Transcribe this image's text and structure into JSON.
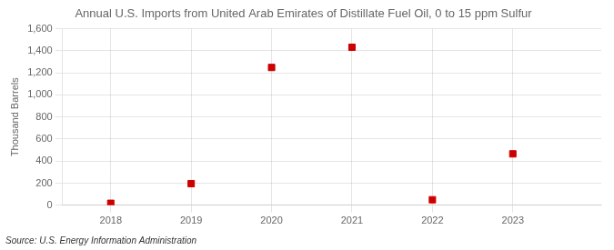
{
  "chart_data": {
    "type": "scatter",
    "title": "Annual U.S. Imports from United Arab Emirates of Distillate Fuel Oil, 0 to 15 ppm Sulfur",
    "ylabel": "Thousand Barrels",
    "source": "Source: U.S. Energy Information Administration",
    "x": [
      2018,
      2019,
      2020,
      2021,
      2022,
      2023
    ],
    "values": [
      18,
      196,
      1249,
      1432,
      50,
      466
    ],
    "color": "#cc0000",
    "marker": "square",
    "xlim": [
      2017.4,
      2024.1
    ],
    "xticks": [
      2018,
      2019,
      2020,
      2021,
      2022,
      2023
    ],
    "ylim": [
      0,
      1600
    ],
    "yticks": [
      0,
      200,
      400,
      600,
      800,
      {
        "value": 1000,
        "label": "1,000"
      },
      {
        "value": 1200,
        "label": "1,200"
      },
      {
        "value": 1400,
        "label": "1,400"
      },
      {
        "value": 1600,
        "label": "1,600"
      }
    ],
    "grid": true
  }
}
